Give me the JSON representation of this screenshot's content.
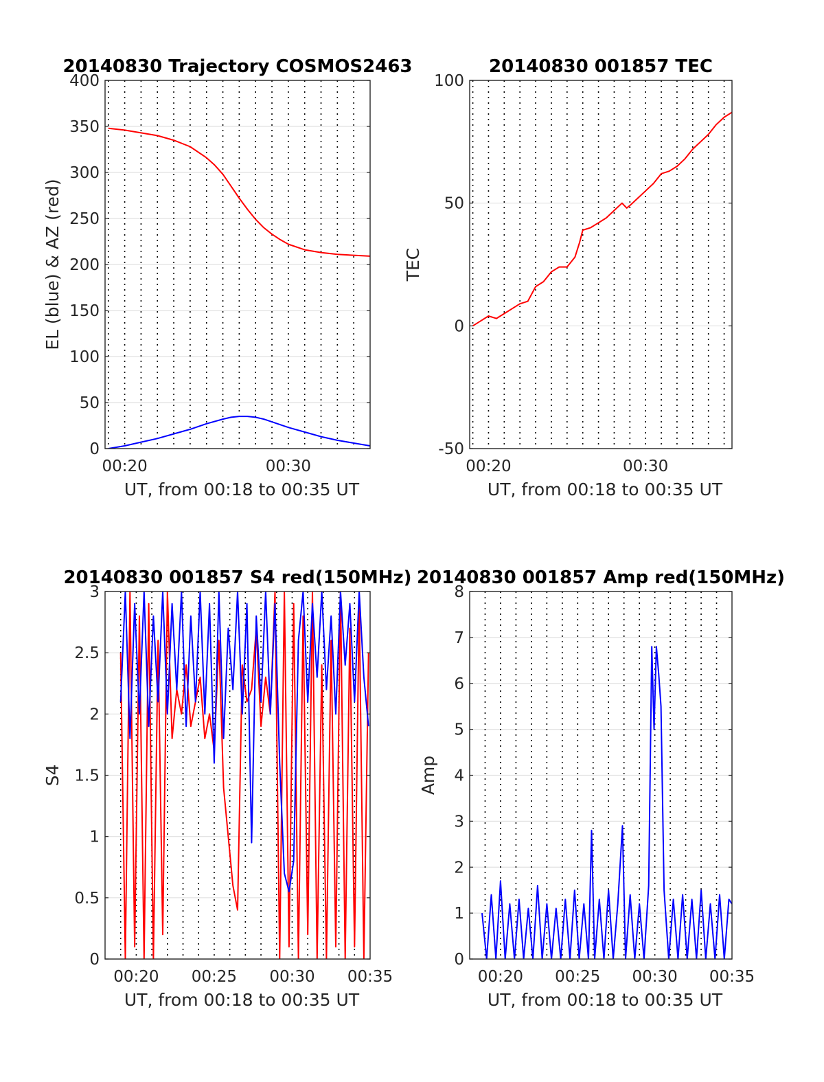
{
  "chart_data": [
    {
      "type": "line",
      "title": "20140830 Trajectory COSMOS2463",
      "xlabel": "UT, from 00:18 to 00:35 UT",
      "ylabel": "EL (blue) & AZ (red)",
      "xlim": [
        18.8,
        35
      ],
      "ylim": [
        0,
        400
      ],
      "yticks": [
        0,
        50,
        100,
        150,
        200,
        250,
        300,
        350,
        400
      ],
      "xticks": [
        20,
        30
      ],
      "xtick_labels": [
        "00:20",
        "00:30"
      ],
      "grid": true,
      "series": [
        {
          "color": "#ff0000",
          "x": [
            19.0,
            20.0,
            21.0,
            22.0,
            23.0,
            24.0,
            25.0,
            25.5,
            26.0,
            26.5,
            27.0,
            27.5,
            28.0,
            28.5,
            29.0,
            29.5,
            30.0,
            31.0,
            32.0,
            33.0,
            34.0,
            35.0
          ],
          "values": [
            348,
            346,
            343,
            340,
            335,
            328,
            316,
            308,
            298,
            285,
            272,
            260,
            249,
            240,
            233,
            227,
            222,
            216,
            213,
            211,
            210,
            209
          ]
        },
        {
          "color": "#0000ff",
          "x": [
            19.0,
            20.0,
            21.0,
            22.0,
            23.0,
            24.0,
            25.0,
            26.0,
            26.5,
            27.0,
            27.5,
            28.0,
            28.5,
            29.0,
            30.0,
            31.0,
            32.0,
            33.0,
            34.0,
            35.0
          ],
          "values": [
            0,
            3,
            7,
            11,
            16,
            21,
            27,
            32,
            34,
            35,
            35,
            34,
            32,
            29,
            23,
            18,
            13,
            9,
            6,
            3
          ]
        }
      ]
    },
    {
      "type": "line",
      "title": "20140830 001857 TEC",
      "xlabel": "UT, from 00:18 to 00:35 UT",
      "ylabel": "TEC",
      "xlim": [
        18.8,
        35.5
      ],
      "ylim": [
        -50,
        100
      ],
      "yticks": [
        -50,
        0,
        50,
        100
      ],
      "xticks": [
        20,
        30
      ],
      "xtick_labels": [
        "00:20",
        "00:30"
      ],
      "grid": true,
      "series": [
        {
          "color": "#ff0000",
          "x": [
            19.0,
            19.5,
            20.0,
            20.5,
            21.0,
            21.5,
            22.0,
            22.5,
            23.0,
            23.5,
            24.0,
            24.5,
            25.0,
            25.5,
            25.8,
            26.0,
            26.5,
            27.0,
            27.5,
            28.0,
            28.5,
            28.8,
            29.0,
            29.5,
            30.0,
            30.5,
            31.0,
            31.5,
            32.0,
            32.5,
            33.0,
            33.5,
            34.0,
            34.5,
            35.0,
            35.5
          ],
          "values": [
            0,
            2,
            4,
            3,
            5,
            7,
            9,
            10,
            16,
            18,
            22,
            24,
            24,
            28,
            34,
            39,
            40,
            42,
            44,
            47,
            50,
            48,
            49,
            52,
            55,
            58,
            62,
            63,
            65,
            68,
            72,
            75,
            78,
            82,
            85,
            87
          ]
        }
      ]
    },
    {
      "type": "line",
      "title": "20140830 001857 S4 red(150MHz)",
      "xlabel": "UT, from 00:18 to 00:35 UT",
      "ylabel": "S4",
      "xlim": [
        18,
        35
      ],
      "ylim": [
        0,
        3
      ],
      "yticks": [
        0,
        0.5,
        1,
        1.5,
        2,
        2.5,
        3
      ],
      "xticks": [
        20,
        25,
        30,
        35
      ],
      "xtick_labels": [
        "00:20",
        "00:25",
        "00:30",
        "00:35"
      ],
      "grid": true,
      "series": [
        {
          "color": "#ff0000",
          "x": [
            19.0,
            19.3,
            19.6,
            19.9,
            20.2,
            20.5,
            20.8,
            21.1,
            21.4,
            21.7,
            22.0,
            22.3,
            22.6,
            22.9,
            23.2,
            23.5,
            23.8,
            24.1,
            24.4,
            24.7,
            25.0,
            25.3,
            25.6,
            25.9,
            26.2,
            26.5,
            26.8,
            27.1,
            27.4,
            27.7,
            28.0,
            28.3,
            28.6,
            28.9,
            29.2,
            29.5,
            29.8,
            30.1,
            30.4,
            30.7,
            31.0,
            31.3,
            31.6,
            31.9,
            32.2,
            32.5,
            32.8,
            33.1,
            33.4,
            33.7,
            34.0,
            34.3,
            34.6,
            34.9
          ],
          "values": [
            2.5,
            0,
            3,
            0.1,
            2.8,
            0,
            2.9,
            0,
            2.6,
            0.2,
            3,
            1.8,
            2.2,
            2.0,
            2.4,
            1.9,
            2.1,
            2.3,
            1.8,
            2.0,
            1.7,
            2.6,
            1.4,
            1.0,
            0.6,
            0.4,
            2.4,
            2.1,
            2.2,
            2.7,
            1.9,
            2.3,
            2.0,
            3,
            0,
            3,
            0.1,
            2.9,
            0,
            2.8,
            0.2,
            3,
            0,
            2.4,
            0,
            2.6,
            0.1,
            3,
            0,
            2.7,
            0.1,
            2.9,
            0,
            2.5
          ]
        },
        {
          "color": "#0000ff",
          "x": [
            19.0,
            19.3,
            19.6,
            19.9,
            20.2,
            20.5,
            20.8,
            21.1,
            21.4,
            21.7,
            22.0,
            22.3,
            22.6,
            22.9,
            23.2,
            23.5,
            23.8,
            24.1,
            24.4,
            24.7,
            25.0,
            25.3,
            25.6,
            25.9,
            26.2,
            26.5,
            26.8,
            27.1,
            27.4,
            27.7,
            28.0,
            28.3,
            28.6,
            28.9,
            29.2,
            29.5,
            29.8,
            30.1,
            30.4,
            30.7,
            31.0,
            31.3,
            31.6,
            31.9,
            32.2,
            32.5,
            32.8,
            33.1,
            33.4,
            33.7,
            34.0,
            34.3,
            34.6,
            34.9
          ],
          "values": [
            2.1,
            3,
            1.8,
            2.9,
            2.0,
            3,
            1.9,
            2.8,
            2.1,
            3,
            2.0,
            2.9,
            2.2,
            3,
            1.9,
            2.8,
            2.1,
            3,
            2.0,
            2.9,
            1.6,
            3,
            1.8,
            2.7,
            2.2,
            3,
            2.0,
            2.9,
            0.95,
            2.8,
            2.1,
            3,
            2.0,
            2.9,
            1.6,
            0.7,
            0.55,
            0.8,
            2.6,
            3,
            2.1,
            2.9,
            2.3,
            3,
            2.2,
            2.8,
            2.0,
            3,
            2.4,
            2.9,
            2.1,
            3,
            2.3,
            1.9
          ]
        }
      ]
    },
    {
      "type": "line",
      "title": "20140830 001857 Amp red(150MHz)",
      "xlabel": "UT, from 00:18 to 00:35 UT",
      "ylabel": "Amp",
      "xlim": [
        18,
        35
      ],
      "ylim": [
        0,
        8
      ],
      "yticks": [
        0,
        1,
        2,
        3,
        4,
        5,
        6,
        7,
        8
      ],
      "xticks": [
        20,
        25,
        30,
        35
      ],
      "xtick_labels": [
        "00:20",
        "00:25",
        "00:30",
        "00:35"
      ],
      "grid": true,
      "series": [
        {
          "color": "#0000ff",
          "x": [
            18.8,
            19.1,
            19.4,
            19.7,
            20.0,
            20.3,
            20.6,
            20.9,
            21.2,
            21.5,
            21.8,
            22.1,
            22.4,
            22.7,
            23.0,
            23.3,
            23.6,
            23.9,
            24.2,
            24.5,
            24.8,
            25.1,
            25.4,
            25.7,
            25.9,
            26.1,
            26.4,
            26.7,
            27.0,
            27.3,
            27.6,
            27.9,
            28.1,
            28.4,
            28.7,
            29.0,
            29.3,
            29.6,
            29.8,
            29.95,
            30.1,
            30.25,
            30.4,
            30.6,
            30.9,
            31.2,
            31.5,
            31.8,
            32.1,
            32.4,
            32.7,
            33.0,
            33.3,
            33.6,
            33.9,
            34.2,
            34.5,
            34.8,
            35.0
          ],
          "values": [
            1.0,
            0,
            1.4,
            0,
            1.7,
            0,
            1.2,
            0,
            1.3,
            0,
            1.1,
            0,
            1.6,
            0,
            1.2,
            0,
            1.1,
            0,
            1.3,
            0,
            1.5,
            0,
            1.2,
            0,
            2.8,
            0,
            1.3,
            0,
            1.5,
            0,
            1.2,
            2.9,
            0,
            1.4,
            0,
            1.2,
            0,
            1.6,
            6.8,
            5.0,
            6.8,
            6.2,
            5.5,
            1.5,
            0,
            1.3,
            0,
            1.4,
            0,
            1.3,
            0,
            1.5,
            0,
            1.2,
            0,
            1.4,
            0,
            1.3,
            1.2
          ]
        }
      ]
    }
  ]
}
